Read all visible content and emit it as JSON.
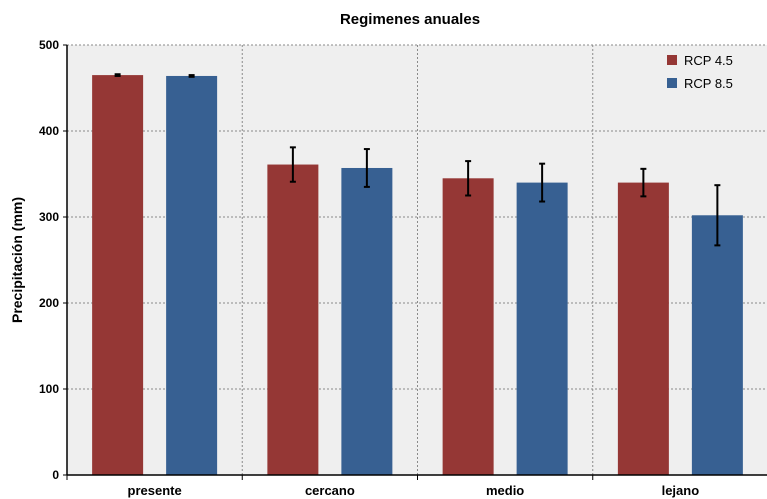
{
  "chart_data": {
    "type": "bar",
    "title": "Regimenes anuales",
    "xlabel": "",
    "ylabel": "Precipitación (mm)",
    "categories": [
      "presente",
      "cercano",
      "medio",
      "lejano"
    ],
    "ylim": [
      0,
      500
    ],
    "yticks": [
      0,
      100,
      200,
      300,
      400,
      500
    ],
    "grid": true,
    "legend_position": "top-right",
    "series": [
      {
        "name": "RCP 4.5",
        "color": "#953735",
        "values": [
          465,
          361,
          345,
          340
        ],
        "errors": [
          1,
          20,
          20,
          16
        ]
      },
      {
        "name": "RCP 8.5",
        "color": "#376092",
        "values": [
          464,
          357,
          340,
          302
        ],
        "errors": [
          1,
          22,
          22,
          35
        ]
      }
    ]
  }
}
